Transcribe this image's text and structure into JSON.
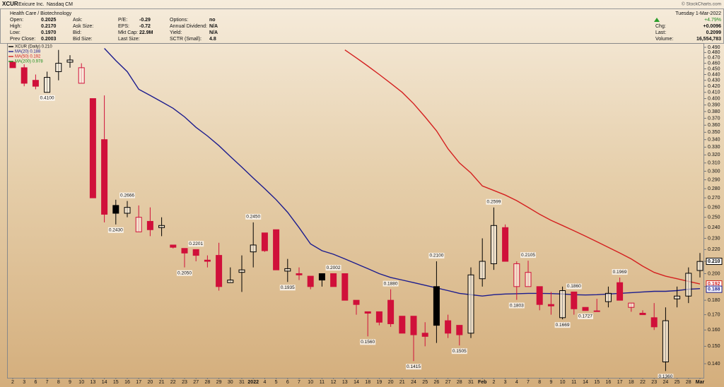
{
  "header": {
    "symbol": "XCUR",
    "name": "Exicure Inc.",
    "exchange": "Nasdaq CM",
    "source": "© StockCharts.com",
    "sector": "Health Care / Biotechnology",
    "date": "Tuesday 1-Mar-2022",
    "change_pct": "+4.79%",
    "columns": [
      [
        {
          "label": "Open:",
          "value": "0.2025"
        },
        {
          "label": "High:",
          "value": "0.2170"
        },
        {
          "label": "Low:",
          "value": "0.1970"
        },
        {
          "label": "Prev Close:",
          "value": "0.2003"
        }
      ],
      [
        {
          "label": "Ask:"
        },
        {
          "label": "Ask Size:"
        },
        {
          "label": "Bid:"
        },
        {
          "label": "Bid Size:"
        }
      ],
      [
        {
          "label": "P/E:",
          "value": "-0.29"
        },
        {
          "label": "EPS:",
          "value": "-0.72"
        },
        {
          "label": "Mkt Cap:",
          "value": "22.9M"
        },
        {
          "label": "Last Size:"
        }
      ],
      [
        {
          "label": "Options:",
          "value": "no"
        },
        {
          "label": "Annual Dividend:",
          "value": "N/A"
        },
        {
          "label": "Yield:",
          "value": "N/A"
        },
        {
          "label": "SCTR (Small):",
          "value": "4.8"
        }
      ]
    ],
    "right": [
      {
        "label": "Chg:",
        "value": "+0.0096"
      },
      {
        "label": "Last:",
        "value": "0.2099"
      },
      {
        "label": "Volume:",
        "value": "16,554,783"
      }
    ]
  },
  "chart_data": {
    "type": "candlestick",
    "name": "XCUR (Daily) 0.210",
    "log_scale": true,
    "grid": false,
    "up_color": "#000000",
    "down_color": "#d0103a",
    "categories": [
      "2",
      "3",
      "6",
      "7",
      "8",
      "9",
      "10",
      "13",
      "14",
      "15",
      "16",
      "17",
      "20",
      "21",
      "22",
      "23",
      "27",
      "28",
      "29",
      "30",
      "31",
      "2022",
      "4",
      "5",
      "6",
      "7",
      "10",
      "11",
      "12",
      "13",
      "14",
      "18",
      "19",
      "20",
      "21",
      "24",
      "25",
      "26",
      "27",
      "28",
      "31",
      "Feb",
      "2",
      "3",
      "4",
      "7",
      "8",
      "9",
      "10",
      "11",
      "14",
      "15",
      "16",
      "17",
      "18",
      "22",
      "23",
      "24",
      "25",
      "28",
      "Mar"
    ],
    "open": [
      0.462,
      0.452,
      0.43,
      0.41,
      0.445,
      0.462,
      0.425,
      0.4,
      0.34,
      0.262,
      0.254,
      0.236,
      0.246,
      0.24,
      0.224,
      0.221,
      0.22,
      0.211,
      0.215,
      0.193,
      0.201,
      0.218,
      0.235,
      0.238,
      0.202,
      0.2,
      0.198,
      0.2,
      0.2,
      0.2,
      0.18,
      0.172,
      0.172,
      0.18,
      0.169,
      0.169,
      0.158,
      0.19,
      0.166,
      0.163,
      0.158,
      0.196,
      0.208,
      0.24,
      0.19,
      0.19,
      0.19,
      0.177,
      0.168,
      0.186,
      0.175,
      0.1726,
      0.179,
      0.193,
      0.175,
      0.171,
      0.168,
      0.141,
      0.181,
      0.183,
      0.2025
    ],
    "high": [
      0.462,
      0.458,
      0.44,
      0.445,
      0.485,
      0.475,
      0.46,
      0.4,
      0.405,
      0.268,
      0.2666,
      0.262,
      0.26,
      0.25,
      0.224,
      0.221,
      0.2201,
      0.215,
      0.226,
      0.205,
      0.215,
      0.245,
      0.235,
      0.238,
      0.212,
      0.205,
      0.198,
      0.2,
      0.2002,
      0.2,
      0.18,
      0.172,
      0.172,
      0.188,
      0.169,
      0.169,
      0.165,
      0.21,
      0.17,
      0.163,
      0.205,
      0.23,
      0.2599,
      0.243,
      0.21,
      0.2105,
      0.19,
      0.186,
      0.19,
      0.186,
      0.175,
      0.181,
      0.19,
      0.1969,
      0.178,
      0.173,
      0.178,
      0.175,
      0.19,
      0.205,
      0.217
    ],
    "low": [
      0.452,
      0.42,
      0.415,
      0.41,
      0.43,
      0.452,
      0.425,
      0.27,
      0.245,
      0.243,
      0.25,
      0.236,
      0.232,
      0.232,
      0.221,
      0.205,
      0.21,
      0.205,
      0.187,
      0.193,
      0.186,
      0.205,
      0.218,
      0.203,
      0.1935,
      0.195,
      0.188,
      0.19,
      0.19,
      0.18,
      0.17,
      0.156,
      0.163,
      0.162,
      0.158,
      0.1415,
      0.15,
      0.152,
      0.155,
      0.1505,
      0.155,
      0.19,
      0.203,
      0.21,
      0.1803,
      0.19,
      0.173,
      0.17,
      0.1669,
      0.17,
      0.1727,
      0.172,
      0.175,
      0.18,
      0.172,
      0.17,
      0.16,
      0.136,
      0.175,
      0.178,
      0.197
    ],
    "close": [
      0.452,
      0.425,
      0.42,
      0.435,
      0.46,
      0.466,
      0.452,
      0.27,
      0.253,
      0.254,
      0.26,
      0.25,
      0.238,
      0.242,
      0.222,
      0.217,
      0.215,
      0.21,
      0.19,
      0.195,
      0.203,
      0.224,
      0.219,
      0.203,
      0.204,
      0.199,
      0.19,
      0.195,
      0.19,
      0.18,
      0.177,
      0.171,
      0.165,
      0.164,
      0.158,
      0.157,
      0.156,
      0.163,
      0.158,
      0.157,
      0.199,
      0.21,
      0.242,
      0.21,
      0.208,
      0.201,
      0.177,
      0.176,
      0.187,
      0.174,
      0.1728,
      0.1726,
      0.185,
      0.18,
      0.178,
      0.17,
      0.162,
      0.166,
      0.183,
      0.2003,
      0.2099
    ],
    "series": [
      {
        "name": "MA(20) 0.188",
        "color": "#1c1c8e",
        "values": [
          null,
          null,
          null,
          null,
          null,
          null,
          null,
          null,
          0.488,
          0.465,
          0.445,
          0.415,
          0.405,
          0.395,
          0.385,
          0.372,
          0.357,
          0.345,
          0.332,
          0.318,
          0.305,
          0.292,
          0.28,
          0.268,
          0.255,
          0.24,
          0.225,
          0.219,
          0.216,
          0.212,
          0.208,
          0.204,
          0.2,
          0.197,
          0.195,
          0.193,
          0.191,
          0.189,
          0.187,
          0.185,
          0.184,
          0.183,
          0.184,
          0.1845,
          0.1847,
          0.185,
          0.185,
          0.1848,
          0.1845,
          0.184,
          0.1838,
          0.184,
          0.1845,
          0.185,
          0.1855,
          0.186,
          0.1865,
          0.1865,
          0.187,
          0.188,
          0.1885
        ]
      },
      {
        "name": "MA(50) 0.192",
        "color": "#d42020",
        "values": [
          null,
          null,
          null,
          null,
          null,
          null,
          null,
          null,
          null,
          null,
          null,
          null,
          null,
          null,
          null,
          null,
          null,
          null,
          null,
          null,
          null,
          null,
          null,
          null,
          null,
          null,
          null,
          null,
          null,
          0.485,
          0.47,
          0.455,
          0.44,
          0.425,
          0.41,
          0.392,
          0.372,
          0.352,
          0.328,
          0.31,
          0.298,
          0.283,
          0.278,
          0.273,
          0.267,
          0.26,
          0.253,
          0.247,
          0.242,
          0.237,
          0.232,
          0.227,
          0.222,
          0.217,
          0.212,
          0.206,
          0.201,
          0.198,
          0.196,
          0.194,
          0.192
        ]
      },
      {
        "name": "MA(200) 0.978",
        "color": "#1a8c1a",
        "values": [
          null,
          null,
          null,
          null,
          null,
          null,
          null,
          null,
          null,
          null,
          null,
          null,
          null,
          null,
          null,
          null,
          null,
          null,
          null,
          null,
          null,
          null,
          null,
          null,
          null,
          null,
          null,
          null,
          null,
          null,
          null,
          null,
          null,
          null,
          null,
          null,
          null,
          null,
          null,
          null,
          null,
          null,
          null,
          null,
          null,
          null,
          null,
          null,
          null,
          null,
          null,
          null,
          null,
          null,
          null,
          null,
          null,
          null,
          null,
          null,
          null
        ]
      }
    ],
    "ylim": [
      0.1324,
      0.4969
    ],
    "yticks": [
      {
        "value": 0.14,
        "label": "0.140"
      },
      {
        "value": 0.15,
        "label": "0.150"
      },
      {
        "value": 0.16,
        "label": "0.160"
      },
      {
        "value": 0.17,
        "label": "0.170"
      },
      {
        "value": 0.18,
        "label": "0.180"
      },
      {
        "value": 0.19,
        "label": "0.190"
      },
      {
        "value": 0.2,
        "label": "0.200"
      },
      {
        "value": 0.21,
        "label": "0.210"
      },
      {
        "value": 0.22,
        "label": "0.220"
      },
      {
        "value": 0.23,
        "label": "0.230"
      },
      {
        "value": 0.24,
        "label": "0.240"
      },
      {
        "value": 0.25,
        "label": "0.250"
      },
      {
        "value": 0.26,
        "label": "0.260"
      },
      {
        "value": 0.27,
        "label": "0.270"
      },
      {
        "value": 0.28,
        "label": "0.280"
      },
      {
        "value": 0.29,
        "label": "0.290"
      },
      {
        "value": 0.3,
        "label": "0.300"
      },
      {
        "value": 0.31,
        "label": "0.310"
      },
      {
        "value": 0.32,
        "label": "0.320"
      },
      {
        "value": 0.33,
        "label": "0.330"
      },
      {
        "value": 0.34,
        "label": "0.340"
      },
      {
        "value": 0.35,
        "label": "0.350"
      },
      {
        "value": 0.36,
        "label": "0.360"
      },
      {
        "value": 0.37,
        "label": "0.370"
      },
      {
        "value": 0.38,
        "label": "0.380"
      },
      {
        "value": 0.39,
        "label": "0.390"
      },
      {
        "value": 0.4,
        "label": "0.400"
      },
      {
        "value": 0.41,
        "label": "0.410"
      },
      {
        "value": 0.42,
        "label": "0.420"
      },
      {
        "value": 0.43,
        "label": "0.430"
      },
      {
        "value": 0.44,
        "label": "0.440"
      },
      {
        "value": 0.45,
        "label": "0.450"
      },
      {
        "value": 0.46,
        "label": "0.460"
      },
      {
        "value": 0.47,
        "label": "0.470"
      },
      {
        "value": 0.48,
        "label": "0.480"
      },
      {
        "value": 0.49,
        "label": "0.490"
      }
    ],
    "price_tags": [
      {
        "value": 0.21,
        "label": "0.210",
        "color": "#000000"
      },
      {
        "value": 0.192,
        "label": "0.192",
        "color": "#d42020"
      },
      {
        "value": 0.188,
        "label": "0.188",
        "color": "#1c1c8e"
      }
    ],
    "annotations": [
      {
        "index": 3,
        "value": 0.41,
        "label": "0.4100",
        "position": "below"
      },
      {
        "index": 9,
        "value": 0.243,
        "label": "0.2430",
        "position": "below"
      },
      {
        "index": 10,
        "value": 0.2666,
        "label": "0.2666",
        "position": "above"
      },
      {
        "index": 15,
        "value": 0.205,
        "label": "0.2050",
        "position": "below"
      },
      {
        "index": 16,
        "value": 0.2201,
        "label": "0.2201",
        "position": "above"
      },
      {
        "index": 21,
        "value": 0.245,
        "label": "0.2450",
        "position": "above"
      },
      {
        "index": 24,
        "value": 0.1935,
        "label": "0.1935",
        "position": "below"
      },
      {
        "index": 28,
        "value": 0.2002,
        "label": "0.2002",
        "position": "above"
      },
      {
        "index": 31,
        "value": 0.156,
        "label": "0.1560",
        "position": "below"
      },
      {
        "index": 33,
        "value": 0.188,
        "label": "0.1880",
        "position": "above"
      },
      {
        "index": 35,
        "value": 0.1415,
        "label": "0.1415",
        "position": "below"
      },
      {
        "index": 37,
        "value": 0.21,
        "label": "0.2100",
        "position": "above"
      },
      {
        "index": 39,
        "value": 0.1505,
        "label": "0.1505",
        "position": "below"
      },
      {
        "index": 42,
        "value": 0.2599,
        "label": "0.2599",
        "position": "above"
      },
      {
        "index": 44,
        "value": 0.1803,
        "label": "0.1803",
        "position": "below"
      },
      {
        "index": 45,
        "value": 0.2105,
        "label": "0.2105",
        "position": "above"
      },
      {
        "index": 48,
        "value": 0.1669,
        "label": "0.1669",
        "position": "below"
      },
      {
        "index": 49,
        "value": 0.186,
        "label": "0.1860",
        "position": "above"
      },
      {
        "index": 50,
        "value": 0.1727,
        "label": "0.1727",
        "position": "below"
      },
      {
        "index": 53,
        "value": 0.1969,
        "label": "0.1969",
        "position": "above"
      },
      {
        "index": 57,
        "value": 0.136,
        "label": "0.1360",
        "position": "below"
      }
    ]
  }
}
